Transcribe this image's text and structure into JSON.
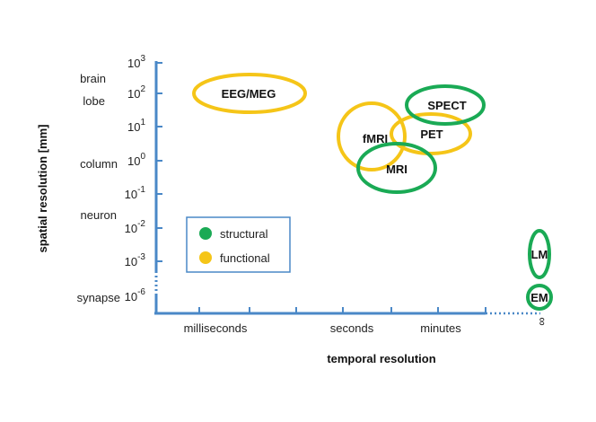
{
  "chart_data": {
    "type": "diagram",
    "xlabel": "temporal resolution",
    "ylabel": "spatial resolution [mm]",
    "x_ticks": [
      {
        "label": "milliseconds"
      },
      {
        "label": "seconds"
      },
      {
        "label": "minutes"
      },
      {
        "label": "∞"
      }
    ],
    "y_ticks": [
      {
        "base": "10",
        "exp": "3"
      },
      {
        "base": "10",
        "exp": "2"
      },
      {
        "base": "10",
        "exp": "1"
      },
      {
        "base": "10",
        "exp": "0"
      },
      {
        "base": "10",
        "exp": "-1"
      },
      {
        "base": "10",
        "exp": "-2"
      },
      {
        "base": "10",
        "exp": "-3"
      },
      {
        "base": "10",
        "exp": "-6"
      }
    ],
    "y_categories": [
      "brain",
      "lobe",
      "column",
      "neuron",
      "synapse"
    ],
    "legend": [
      {
        "label": "structural",
        "color": "#1aaa55"
      },
      {
        "label": "functional",
        "color": "#f5c518"
      }
    ],
    "methods": [
      {
        "label": "EEG/MEG",
        "type": "functional",
        "time": "milliseconds",
        "space": "10^2"
      },
      {
        "label": "fMRI",
        "type": "functional",
        "time": "seconds",
        "space": "10^0"
      },
      {
        "label": "PET",
        "type": "functional",
        "time": "minutes",
        "space": "10^1"
      },
      {
        "label": "SPECT",
        "type": "structural",
        "time": "minutes",
        "space": "10^1.5"
      },
      {
        "label": "MRI",
        "type": "structural",
        "time": "seconds–minutes",
        "space": "10^-0.5"
      },
      {
        "label": "LM",
        "type": "structural",
        "time": "∞",
        "space": "10^-3"
      },
      {
        "label": "EM",
        "type": "structural",
        "time": "∞",
        "space": "10^-6"
      }
    ]
  },
  "colors": {
    "axis": "#4a88c7",
    "structural": "#1aaa55",
    "functional": "#f5c518"
  }
}
